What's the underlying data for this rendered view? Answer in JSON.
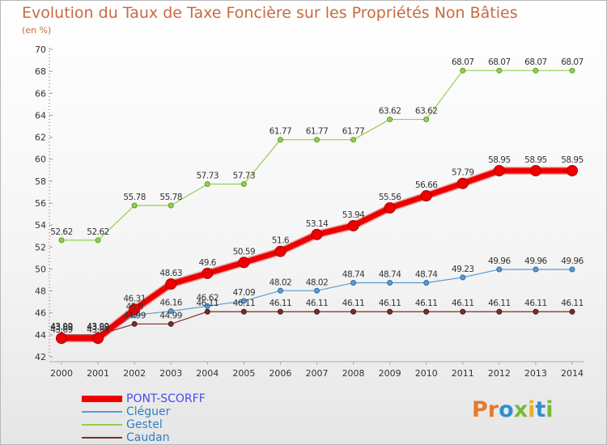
{
  "title": "Evolution du Taux de Taxe Foncière sur les Propriétés Non Bâties",
  "unit": "(en %)",
  "brand": {
    "letters": [
      "P",
      "r",
      "o",
      "x",
      "i",
      "t",
      "i"
    ],
    "colors": [
      "#e8792b",
      "#e8792b",
      "#2f8ed0",
      "#7ab83a",
      "#e8b020",
      "#2f8ed0",
      "#7ab83a"
    ]
  },
  "chart_data": {
    "type": "line",
    "title": "Evolution du Taux de Taxe Foncière sur les Propriétés Non Bâties",
    "ylabel": "(en %)",
    "xlabel": "",
    "x": [
      "2000",
      "2001",
      "2002",
      "2003",
      "2004",
      "2005",
      "2006",
      "2007",
      "2008",
      "2009",
      "2010",
      "2011",
      "2012",
      "2013",
      "2014"
    ],
    "ylim": [
      42,
      70
    ],
    "yticks": [
      42,
      44,
      46,
      48,
      50,
      52,
      54,
      56,
      58,
      60,
      62,
      64,
      66,
      68,
      70
    ],
    "grid": false,
    "legend": "bottom-left",
    "series": [
      {
        "name": "PONT-SCORFF",
        "color": "#ee0000",
        "values": [
          43.69,
          43.69,
          46.31,
          48.63,
          49.6,
          50.59,
          51.6,
          53.14,
          53.94,
          55.56,
          56.66,
          57.79,
          58.95,
          58.95,
          58.95
        ],
        "labels": [
          "43.69",
          "43.69",
          "46.31",
          "48.63",
          "49.6",
          "50.59",
          "51.6",
          "53.14",
          "53.94",
          "55.56",
          "56.66",
          "57.79",
          "58.95",
          "58.95",
          "58.95"
        ]
      },
      {
        "name": "Cléguer",
        "color": "#5b9bd5",
        "values": [
          43.69,
          43.69,
          45.8,
          46.16,
          46.62,
          47.09,
          48.02,
          48.02,
          48.74,
          48.74,
          48.74,
          49.23,
          49.96,
          49.96,
          49.96
        ],
        "labels": [
          "43.69",
          "43.69",
          "45.8",
          "46.16",
          "46.62",
          "47.09",
          "48.02",
          "48.02",
          "48.74",
          "48.74",
          "48.74",
          "49.23",
          "49.96",
          "49.96",
          "49.96"
        ]
      },
      {
        "name": "Gestel",
        "color": "#92d050",
        "values": [
          52.62,
          52.62,
          55.78,
          55.78,
          57.73,
          57.73,
          61.77,
          61.77,
          61.77,
          63.62,
          63.62,
          68.07,
          68.07,
          68.07,
          68.07
        ],
        "labels": [
          "52.62",
          "52.62",
          "55.78",
          "55.78",
          "57.73",
          "57.73",
          "61.77",
          "61.77",
          "61.77",
          "63.62",
          "63.62",
          "68.07",
          "68.07",
          "68.07",
          "68.07"
        ]
      },
      {
        "name": "Caudan",
        "color": "#7a2e2e",
        "values": [
          43.99,
          43.99,
          44.99,
          44.99,
          46.11,
          46.11,
          46.11,
          46.11,
          46.11,
          46.11,
          46.11,
          46.11,
          46.11,
          46.11,
          46.11
        ],
        "labels": [
          "43.99",
          "43.99",
          "44.99",
          "44.99",
          "46.11",
          "46.11",
          "46.11",
          "46.11",
          "46.11",
          "46.11",
          "46.11",
          "46.11",
          "46.11",
          "46.11",
          "46.11"
        ]
      }
    ]
  }
}
